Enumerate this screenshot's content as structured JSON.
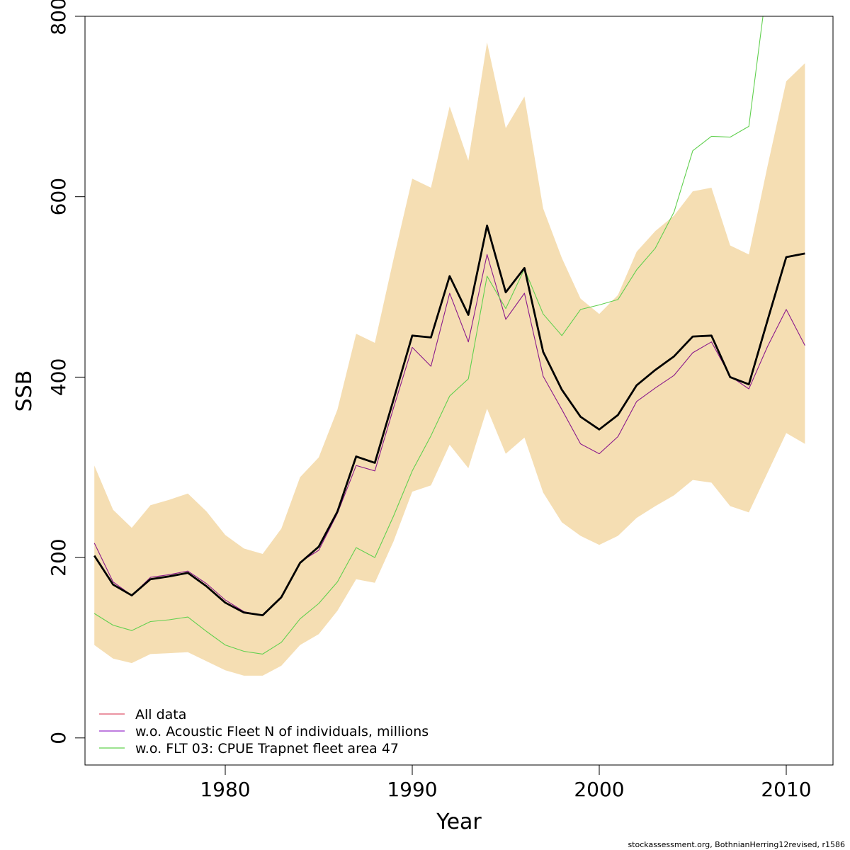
{
  "chart_data": {
    "type": "line",
    "xlabel": "Year",
    "ylabel": "SSB",
    "xlim": [
      1972.5,
      2012.5
    ],
    "ylim": [
      -30,
      800
    ],
    "x_ticks": [
      1980,
      1990,
      2000,
      2010
    ],
    "y_ticks": [
      0,
      200,
      400,
      600,
      800
    ],
    "grid": false,
    "legend_position": "bottom-left",
    "x": [
      1973,
      1974,
      1975,
      1976,
      1977,
      1978,
      1979,
      1980,
      1981,
      1982,
      1983,
      1984,
      1985,
      1986,
      1987,
      1988,
      1989,
      1990,
      1991,
      1992,
      1993,
      1994,
      1995,
      1996,
      1997,
      1998,
      1999,
      2000,
      2001,
      2002,
      2003,
      2004,
      2005,
      2006,
      2007,
      2008,
      2009,
      2010,
      2011
    ],
    "band": {
      "color": "#F5DEB3",
      "lower": [
        103,
        88,
        83,
        93,
        94,
        95,
        85,
        75,
        69,
        69,
        80,
        103,
        115,
        141,
        176,
        172,
        218,
        273,
        280,
        325,
        299,
        365,
        315,
        333,
        272,
        239,
        224,
        214,
        224,
        244,
        257,
        269,
        286,
        283,
        257,
        250,
        294,
        338,
        326
      ],
      "upper": [
        302,
        253,
        233,
        258,
        264,
        271,
        251,
        225,
        210,
        204,
        232,
        289,
        311,
        364,
        448,
        438,
        531,
        620,
        610,
        700,
        640,
        771,
        676,
        711,
        587,
        532,
        487,
        470,
        491,
        539,
        562,
        579,
        606,
        610,
        546,
        536,
        634,
        728,
        748
      ]
    },
    "series": [
      {
        "name": "All data",
        "legend_color": "#DF536B",
        "draw_color": "#000000",
        "width": 2.8,
        "values": [
          202,
          170,
          158,
          176,
          179,
          183,
          168,
          150,
          139,
          136,
          156,
          194,
          212,
          251,
          312,
          305,
          375,
          446,
          444,
          512,
          469,
          568,
          494,
          521,
          428,
          386,
          356,
          342,
          358,
          391,
          408,
          423,
          445,
          446,
          400,
          392,
          463,
          533,
          537
        ]
      },
      {
        "name": "w.o. Acoustic Fleet  N of individuals, millions",
        "legend_color": "#9932CC",
        "draw_color": "#8B1A8B",
        "width": 1.1,
        "values": [
          216,
          173,
          158,
          178,
          181,
          185,
          171,
          153,
          140,
          136,
          155,
          195,
          208,
          249,
          302,
          296,
          366,
          433,
          412,
          493,
          439,
          536,
          464,
          493,
          401,
          364,
          326,
          315,
          334,
          373,
          388,
          402,
          427,
          439,
          401,
          387,
          434,
          475,
          435
        ]
      },
      {
        "name": "w.o. FLT 03: CPUE Trapnet fleet area 47",
        "legend_color": "#61D04F",
        "draw_color": "#61D04F",
        "width": 1.1,
        "values": [
          138,
          125,
          119,
          129,
          131,
          134,
          118,
          103,
          96,
          93,
          106,
          132,
          149,
          173,
          211,
          200,
          246,
          296,
          335,
          379,
          398,
          512,
          476,
          520,
          470,
          446,
          475,
          480,
          486,
          519,
          543,
          583,
          651,
          667,
          666,
          678,
          840,
          null,
          null
        ]
      }
    ],
    "footer": "stockassessment.org, BothnianHerring12revised, r1586"
  }
}
